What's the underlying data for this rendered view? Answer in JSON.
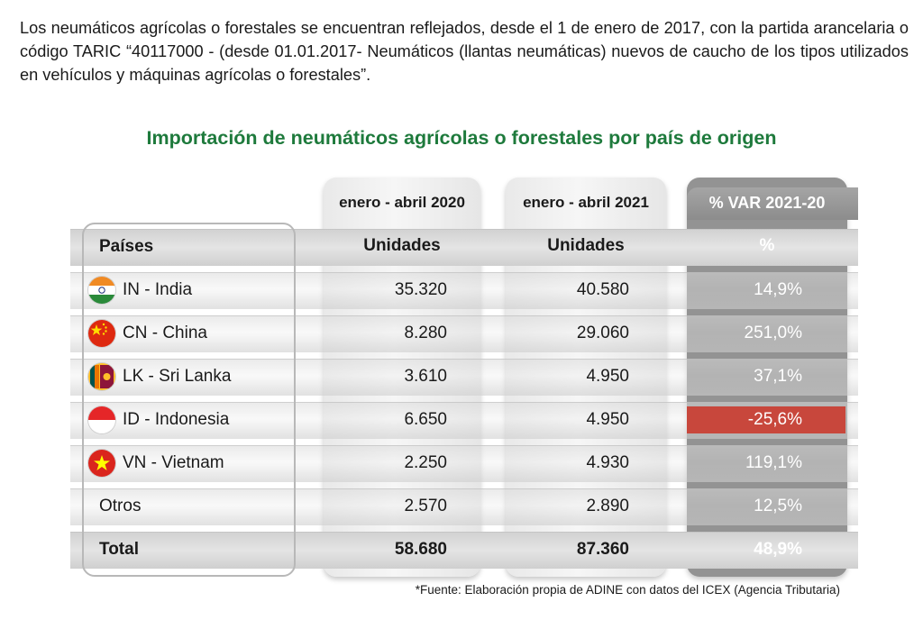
{
  "intro_text": "Los neumáticos agrícolas o forestales se encuentran reflejados, desde el 1 de enero de 2017, con la partida arancelaria o código TARIC “40117000 - (desde 01.01.2017- Neumáticos (llantas neumáticas) nuevos de caucho de los tipos utilizados en vehículos y máquinas agrícolas o forestales”.",
  "table_title": "Importación de neumáticos agrícolas o forestales por país de origen",
  "periods": {
    "p2020": "enero - abril 2020",
    "p2021": "enero - abril 2021",
    "pvar": "% VAR 2021-20"
  },
  "headers": {
    "country": "Países",
    "units_2020": "Unidades",
    "units_2021": "Unidades",
    "var": "%"
  },
  "rows": [
    {
      "flag": "india-flag-icon",
      "country": "IN - India",
      "u2020": "35.320",
      "u2021": "40.580",
      "var": "14,9%"
    },
    {
      "flag": "china-flag-icon",
      "country": "CN - China",
      "u2020": "8.280",
      "u2021": "29.060",
      "var": "251,0%"
    },
    {
      "flag": "sri-lanka-flag-icon",
      "country": "LK - Sri Lanka",
      "u2020": "3.610",
      "u2021": "4.950",
      "var": "37,1%"
    },
    {
      "flag": "indonesia-flag-icon",
      "country": "ID - Indonesia",
      "u2020": "6.650",
      "u2021": "4.950",
      "var": "-25,6%"
    },
    {
      "flag": "vietnam-flag-icon",
      "country": "VN - Vietnam",
      "u2020": "2.250",
      "u2021": "4.930",
      "var": "119,1%"
    },
    {
      "flag": "",
      "country": "Otros",
      "u2020": "2.570",
      "u2021": "2.890",
      "var": "12,5%"
    }
  ],
  "total": {
    "label": "Total",
    "u2020": "58.680",
    "u2021": "87.360",
    "var": "48,9%"
  },
  "colors": {
    "title_green": "#1e7a3c",
    "negative_highlight": "#c8473c",
    "var_column": "#939393"
  },
  "footnote": "*Fuente: Elaboración propia de ADINE con datos del ICEX (Agencia Tributaria)"
}
